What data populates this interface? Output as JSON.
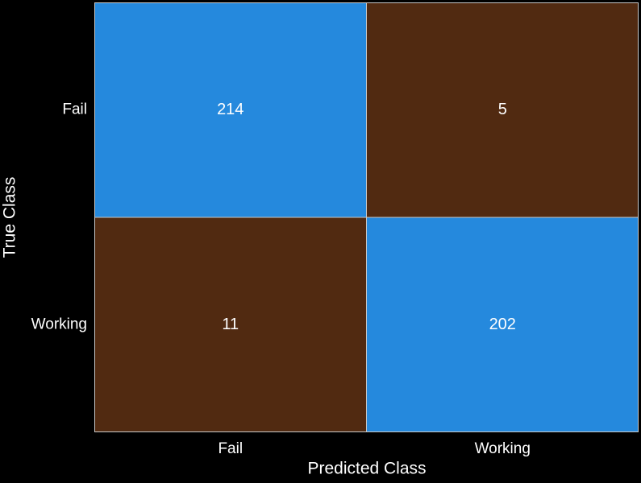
{
  "chart_data": {
    "type": "heatmap",
    "title": "",
    "xlabel": "Predicted Class",
    "ylabel": "True Class",
    "x_categories": [
      "Fail",
      "Working"
    ],
    "y_categories": [
      "Fail",
      "Working"
    ],
    "values": [
      [
        214,
        5
      ],
      [
        11,
        202
      ]
    ],
    "colors": {
      "diagonal": "#2589dd",
      "off_diagonal": "#512a11",
      "background": "#000000",
      "text": "#ffffff",
      "gridline": "#c8c8c8"
    },
    "grid": true,
    "legend": "none"
  }
}
